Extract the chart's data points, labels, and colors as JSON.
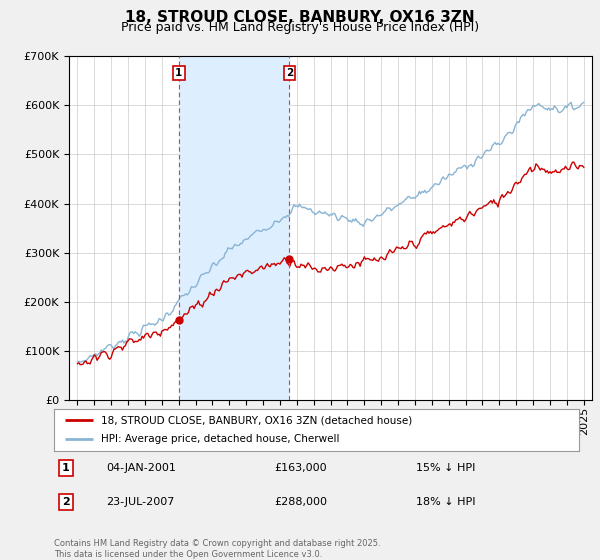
{
  "title": "18, STROUD CLOSE, BANBURY, OX16 3ZN",
  "subtitle": "Price paid vs. HM Land Registry's House Price Index (HPI)",
  "ylim": [
    0,
    700000
  ],
  "yticks": [
    0,
    100000,
    200000,
    300000,
    400000,
    500000,
    600000,
    700000
  ],
  "ytick_labels": [
    "£0",
    "£100K",
    "£200K",
    "£300K",
    "£400K",
    "£500K",
    "£600K",
    "£700K"
  ],
  "xlim_start": 1994.5,
  "xlim_end": 2025.5,
  "hpi_color": "#8ab4d4",
  "property_color": "#cc0000",
  "marker1_x": 2001.01,
  "marker1_y": 163000,
  "marker1_label": "04-JAN-2001",
  "marker1_price": "£163,000",
  "marker1_hpi": "15% ↓ HPI",
  "marker2_x": 2007.56,
  "marker2_y": 288000,
  "marker2_label": "23-JUL-2007",
  "marker2_price": "£288,000",
  "marker2_hpi": "18% ↓ HPI",
  "legend_line1": "18, STROUD CLOSE, BANBURY, OX16 3ZN (detached house)",
  "legend_line2": "HPI: Average price, detached house, Cherwell",
  "copyright": "Contains HM Land Registry data © Crown copyright and database right 2025.\nThis data is licensed under the Open Government Licence v3.0.",
  "background_color": "#f0f0f0",
  "plot_bg_color": "#ffffff",
  "grid_color": "#cccccc",
  "shade_color": "#ddeeff",
  "title_fontsize": 11,
  "subtitle_fontsize": 9,
  "tick_fontsize": 8
}
